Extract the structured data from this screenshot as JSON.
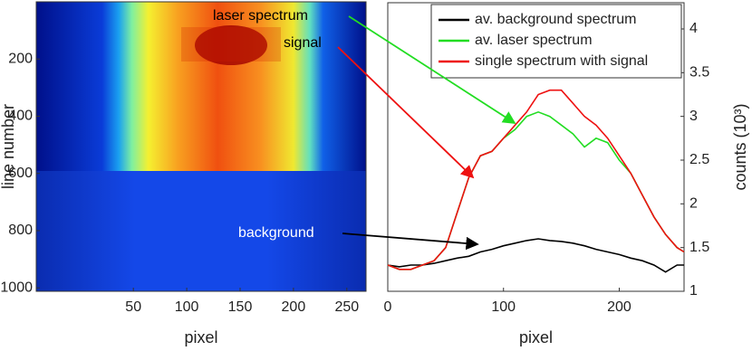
{
  "chart_data": [
    {
      "type": "heatmap",
      "xlabel": "pixel",
      "ylabel": "line number",
      "xlim": [
        -41,
        268
      ],
      "xticks": [
        50,
        100,
        150,
        200,
        250
      ],
      "ylim": [
        1012,
        0
      ],
      "yticks": [
        200,
        400,
        600,
        800,
        1000
      ]
    },
    {
      "type": "line",
      "xlabel": "pixel",
      "y2label": "counts (10³)",
      "annotations": [
        "laser spectrum",
        "signal",
        "background"
      ],
      "xlim": [
        0,
        256
      ],
      "xticks": [
        0,
        100,
        200
      ],
      "y2lim": [
        1,
        4.3
      ],
      "y2ticks": [
        1,
        1.5,
        2,
        2.5,
        3,
        3.5,
        4
      ],
      "legend": "upper right",
      "x": [
        0,
        10,
        20,
        30,
        40,
        50,
        60,
        70,
        80,
        90,
        100,
        110,
        120,
        130,
        140,
        150,
        160,
        170,
        180,
        190,
        200,
        210,
        220,
        230,
        240,
        250,
        256
      ],
      "series": [
        {
          "name": "av. background spectrum",
          "color": "#000000",
          "axis": "y2",
          "values": [
            1.3,
            1.28,
            1.3,
            1.3,
            1.32,
            1.35,
            1.38,
            1.4,
            1.45,
            1.48,
            1.52,
            1.55,
            1.58,
            1.6,
            1.58,
            1.57,
            1.55,
            1.52,
            1.48,
            1.45,
            1.42,
            1.38,
            1.35,
            1.3,
            1.22,
            1.3,
            1.3
          ]
        },
        {
          "name": "av. laser spectrum",
          "color": "#22dd22",
          "axis": "y2",
          "values": [
            1.3,
            1.25,
            1.25,
            1.3,
            1.35,
            1.5,
            1.9,
            2.3,
            2.55,
            2.6,
            2.75,
            2.85,
            3.0,
            3.05,
            3.0,
            2.9,
            2.8,
            2.65,
            2.75,
            2.7,
            2.5,
            2.35,
            2.1,
            1.85,
            1.65,
            1.5,
            1.45
          ]
        },
        {
          "name": "single spectrum with signal",
          "color": "#ee1111",
          "axis": "y2",
          "values": [
            1.3,
            1.25,
            1.25,
            1.3,
            1.35,
            1.5,
            1.9,
            2.3,
            2.55,
            2.6,
            2.75,
            2.9,
            3.05,
            3.25,
            3.3,
            3.3,
            3.15,
            3.0,
            2.9,
            2.75,
            2.55,
            2.35,
            2.1,
            1.85,
            1.65,
            1.5,
            1.45
          ]
        }
      ]
    }
  ]
}
